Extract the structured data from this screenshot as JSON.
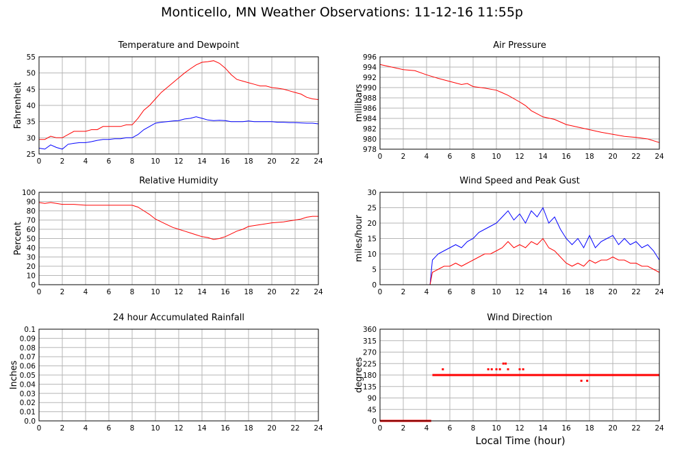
{
  "page": {
    "title": "Monticello, MN Weather Observations: 11-12-16 11:55p"
  },
  "shared_xlabel": "Local Time (hour)",
  "chart_data": [
    {
      "id": "temp",
      "type": "line",
      "title": "Temperature and Dewpoint",
      "ylabel": "Fahrenheit",
      "xlim": [
        0,
        24
      ],
      "ylim": [
        25,
        55
      ],
      "xticks": [
        0,
        2,
        4,
        6,
        8,
        10,
        12,
        14,
        16,
        18,
        20,
        22,
        24
      ],
      "yticks": [
        25,
        30,
        35,
        40,
        45,
        50,
        55
      ],
      "grid": true,
      "series": [
        {
          "color": "#ff0000",
          "x": [
            0,
            0.5,
            1,
            1.5,
            2,
            2.5,
            3,
            3.5,
            4,
            4.5,
            5,
            5.5,
            6,
            6.5,
            7,
            7.5,
            8,
            8.5,
            9,
            9.5,
            10,
            10.5,
            11,
            11.5,
            12,
            12.5,
            13,
            13.5,
            14,
            14.5,
            15,
            15.5,
            16,
            16.5,
            17,
            17.5,
            18,
            18.5,
            19,
            19.5,
            20,
            20.5,
            21,
            21.5,
            22,
            22.5,
            23,
            23.5,
            24
          ],
          "y": [
            29.5,
            29.5,
            30.5,
            30,
            30,
            31,
            32,
            32,
            32,
            32.5,
            32.5,
            33.5,
            33.5,
            33.5,
            33.5,
            34,
            34,
            36,
            38.5,
            40,
            42,
            44,
            45.5,
            47,
            48.5,
            50,
            51.3,
            52.5,
            53.3,
            53.5,
            53.8,
            53,
            51.5,
            49.5,
            48,
            47.5,
            47,
            46.5,
            46,
            46,
            45.5,
            45.3,
            45,
            44.5,
            44,
            43.5,
            42.5,
            42,
            41.8
          ]
        },
        {
          "color": "#0000ff",
          "x": [
            0,
            0.5,
            1,
            1.5,
            2,
            2.5,
            3,
            3.5,
            4,
            4.5,
            5,
            5.5,
            6,
            6.5,
            7,
            7.5,
            8,
            8.5,
            9,
            9.5,
            10,
            10.5,
            11,
            11.5,
            12,
            12.5,
            13,
            13.5,
            14,
            14.5,
            15,
            15.5,
            16,
            16.5,
            17,
            17.5,
            18,
            18.5,
            19,
            19.5,
            20,
            20.5,
            21,
            21.5,
            22,
            22.5,
            23,
            23.5,
            24
          ],
          "y": [
            26.8,
            26.5,
            27.8,
            27,
            26.5,
            28,
            28.3,
            28.5,
            28.5,
            28.8,
            29.2,
            29.5,
            29.5,
            29.7,
            29.7,
            30,
            30,
            31,
            32.5,
            33.5,
            34.5,
            34.8,
            35,
            35.2,
            35.3,
            35.8,
            36,
            36.5,
            36,
            35.5,
            35.3,
            35.4,
            35.3,
            35,
            35,
            35,
            35.2,
            35,
            35,
            35,
            35,
            34.8,
            34.8,
            34.7,
            34.7,
            34.6,
            34.5,
            34.5,
            34.3
          ]
        }
      ]
    },
    {
      "id": "pressure",
      "type": "line",
      "title": "Air Pressure",
      "ylabel": "millibars",
      "xlim": [
        0,
        24
      ],
      "ylim": [
        978,
        996
      ],
      "xticks": [
        0,
        2,
        4,
        6,
        8,
        10,
        12,
        14,
        16,
        18,
        20,
        22,
        24
      ],
      "yticks": [
        978,
        980,
        982,
        984,
        986,
        988,
        990,
        992,
        994,
        996
      ],
      "grid": true,
      "series": [
        {
          "color": "#ff0000",
          "x": [
            0,
            1,
            2,
            3,
            4,
            5,
            6,
            7,
            7.5,
            8,
            9,
            10,
            10.5,
            11,
            12,
            12.5,
            13,
            14,
            15,
            16,
            17,
            18,
            19,
            20,
            21,
            22,
            23,
            24
          ],
          "y": [
            994.5,
            994,
            993.5,
            993.3,
            992.5,
            991.8,
            991.2,
            990.6,
            990.8,
            990.2,
            989.9,
            989.5,
            989,
            988.5,
            987.2,
            986.5,
            985.5,
            984.3,
            983.8,
            982.8,
            982.3,
            981.8,
            981.3,
            980.9,
            980.5,
            980.3,
            980,
            979.3
          ]
        }
      ]
    },
    {
      "id": "humidity",
      "type": "line",
      "title": "Relative Humidity",
      "ylabel": "Percent",
      "xlim": [
        0,
        24
      ],
      "ylim": [
        0,
        100
      ],
      "xticks": [
        0,
        2,
        4,
        6,
        8,
        10,
        12,
        14,
        16,
        18,
        20,
        22,
        24
      ],
      "yticks": [
        0,
        10,
        20,
        30,
        40,
        50,
        60,
        70,
        80,
        90,
        100
      ],
      "grid": true,
      "series": [
        {
          "color": "#ff0000",
          "x": [
            0,
            0.5,
            1,
            1.5,
            2,
            3,
            4,
            5,
            6,
            7,
            8,
            8.5,
            9,
            9.5,
            10,
            10.5,
            11,
            11.5,
            12,
            12.5,
            13,
            13.5,
            14,
            14.5,
            15,
            15.5,
            16,
            16.5,
            17,
            17.5,
            18,
            19,
            20,
            21,
            22,
            22.5,
            23,
            23.5,
            24
          ],
          "y": [
            89,
            88,
            89,
            88,
            87,
            87,
            86,
            86,
            86,
            86,
            86,
            84,
            80,
            76,
            71,
            68,
            65,
            62,
            60,
            58,
            56,
            54,
            52,
            51,
            49,
            50,
            52,
            55,
            58,
            60,
            63,
            65,
            67,
            68,
            70,
            71,
            73,
            74,
            74
          ]
        }
      ]
    },
    {
      "id": "wind",
      "type": "line",
      "title": "Wind Speed and Peak Gust",
      "ylabel": "miles/hour",
      "xlim": [
        0,
        24
      ],
      "ylim": [
        0,
        30
      ],
      "xticks": [
        0,
        2,
        4,
        6,
        8,
        10,
        12,
        14,
        16,
        18,
        20,
        22,
        24
      ],
      "yticks": [
        0,
        5,
        10,
        15,
        20,
        25,
        30
      ],
      "grid": true,
      "series": [
        {
          "color": "#0000ff",
          "x": [
            0,
            4.3,
            4.5,
            5,
            5.5,
            6,
            6.5,
            7,
            7.5,
            8,
            8.5,
            9,
            9.5,
            10,
            10.5,
            11,
            11.5,
            12,
            12.5,
            13,
            13.5,
            14,
            14.5,
            15,
            15.5,
            16,
            16.5,
            17,
            17.5,
            18,
            18.5,
            19,
            19.5,
            20,
            20.5,
            21,
            21.5,
            22,
            22.5,
            23,
            23.5,
            24
          ],
          "y": [
            0,
            0,
            8,
            10,
            11,
            12,
            13,
            12,
            14,
            15,
            17,
            18,
            19,
            20,
            22,
            24,
            21,
            23,
            20,
            24,
            22,
            25,
            20,
            22,
            18,
            15,
            13,
            15,
            12,
            16,
            12,
            14,
            15,
            16,
            13,
            15,
            13,
            14,
            12,
            13,
            11,
            8
          ]
        },
        {
          "color": "#ff0000",
          "x": [
            0,
            4.3,
            4.5,
            5,
            5.5,
            6,
            6.5,
            7,
            7.5,
            8,
            8.5,
            9,
            9.5,
            10,
            10.5,
            11,
            11.5,
            12,
            12.5,
            13,
            13.5,
            14,
            14.5,
            15,
            15.5,
            16,
            16.5,
            17,
            17.5,
            18,
            18.5,
            19,
            19.5,
            20,
            20.5,
            21,
            21.5,
            22,
            22.5,
            23,
            23.5,
            24
          ],
          "y": [
            0,
            0,
            4,
            5,
            6,
            6,
            7,
            6,
            7,
            8,
            9,
            10,
            10,
            11,
            12,
            14,
            12,
            13,
            12,
            14,
            13,
            15,
            12,
            11,
            9,
            7,
            6,
            7,
            6,
            8,
            7,
            8,
            8,
            9,
            8,
            8,
            7,
            7,
            6,
            6,
            5,
            4
          ]
        }
      ]
    },
    {
      "id": "rain",
      "type": "line",
      "title": "24 hour Accumulated Rainfall",
      "ylabel": "Inches",
      "xlim": [
        0,
        24
      ],
      "ylim": [
        0,
        0.1
      ],
      "xticks": [
        0,
        2,
        4,
        6,
        8,
        10,
        12,
        14,
        16,
        18,
        20,
        22,
        24
      ],
      "yticks": [
        0.0,
        0.01,
        0.02,
        0.03,
        0.04,
        0.05,
        0.06,
        0.07,
        0.08,
        0.09,
        0.1
      ],
      "ytick_labels": [
        "0.0",
        "0.01",
        "0.02",
        "0.03",
        "0.04",
        "0.05",
        "0.06",
        "0.07",
        "0.08",
        "0.09",
        "0.1"
      ],
      "grid": true,
      "series": [
        {
          "color": "#ff0000",
          "x": [
            0,
            24
          ],
          "y": [
            0,
            0
          ]
        }
      ]
    },
    {
      "id": "direction",
      "type": "scatter",
      "title": "Wind Direction",
      "ylabel": "degrees",
      "xlim": [
        0,
        24
      ],
      "ylim": [
        0,
        360
      ],
      "xticks": [
        0,
        2,
        4,
        6,
        8,
        10,
        12,
        14,
        16,
        18,
        20,
        22,
        24
      ],
      "yticks": [
        0,
        45,
        90,
        135,
        180,
        225,
        270,
        315,
        360
      ],
      "grid": true,
      "series": [
        {
          "color": "#ff0000",
          "segments": [
            {
              "x_from": 0,
              "x_to": 4.4,
              "y": 0
            },
            {
              "x_from": 4.5,
              "x_to": 24,
              "y": 180
            }
          ],
          "x": [
            5.4,
            9.3,
            9.6,
            10.0,
            10.3,
            10.6,
            10.8,
            11.0,
            11.4,
            12.0,
            12.3,
            17.3,
            17.8,
            17.6
          ],
          "y": [
            202.5,
            202.5,
            202.5,
            202.5,
            202.5,
            225,
            225,
            202.5,
            180,
            202.5,
            202.5,
            157.5,
            157.5,
            180
          ]
        }
      ]
    }
  ]
}
